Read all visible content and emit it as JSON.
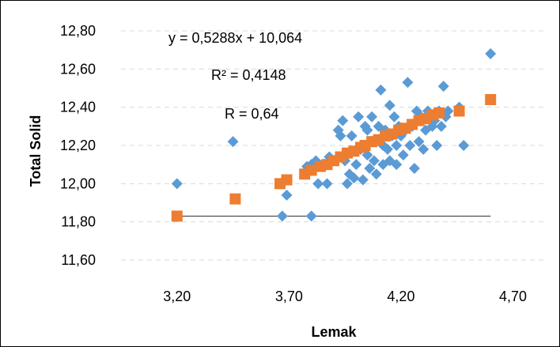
{
  "chart_data": {
    "type": "scatter",
    "xlabel": "Lemak",
    "ylabel": "Total Solid",
    "xlim": [
      2.95,
      4.85
    ],
    "ylim": [
      11.6,
      12.8
    ],
    "x_ticks": [
      "3,20",
      "3,70",
      "4,20",
      "4,70"
    ],
    "x_tick_values": [
      3.2,
      3.7,
      4.2,
      4.7
    ],
    "y_ticks": [
      "12,80",
      "12,60",
      "12,40",
      "12,20",
      "12,00",
      "11,80",
      "11,60"
    ],
    "y_tick_values": [
      12.8,
      12.6,
      12.4,
      12.2,
      12.0,
      11.8,
      11.6
    ],
    "annotations": [
      "y = 0,5288x + 10,064",
      "R² = 0,4148",
      "R = 0,64"
    ],
    "colors": {
      "observed": "#5b9bd5",
      "predicted": "#ed7d31",
      "baseline": "#404040"
    },
    "baseline": {
      "x": [
        3.2,
        4.6
      ],
      "y": 11.83
    },
    "series": [
      {
        "marker": "diamond",
        "points": [
          [
            3.2,
            12.0
          ],
          [
            3.45,
            12.22
          ],
          [
            3.67,
            11.83
          ],
          [
            3.69,
            11.94
          ],
          [
            3.8,
            11.83
          ],
          [
            3.78,
            12.09
          ],
          [
            3.8,
            12.1
          ],
          [
            3.82,
            12.12
          ],
          [
            3.83,
            12.0
          ],
          [
            3.85,
            12.1
          ],
          [
            3.87,
            12.0
          ],
          [
            3.88,
            12.14
          ],
          [
            3.9,
            12.12
          ],
          [
            3.92,
            12.28
          ],
          [
            3.94,
            12.33
          ],
          [
            3.93,
            12.25
          ],
          [
            3.95,
            12.12
          ],
          [
            3.96,
            12.0
          ],
          [
            3.97,
            12.05
          ],
          [
            3.98,
            12.25
          ],
          [
            3.99,
            12.03
          ],
          [
            4.0,
            12.1
          ],
          [
            4.01,
            12.35
          ],
          [
            4.02,
            12.18
          ],
          [
            4.03,
            12.02
          ],
          [
            4.04,
            12.3
          ],
          [
            4.05,
            12.28
          ],
          [
            4.05,
            12.15
          ],
          [
            4.06,
            12.08
          ],
          [
            4.07,
            12.35
          ],
          [
            4.08,
            12.22
          ],
          [
            4.08,
            12.12
          ],
          [
            4.09,
            12.05
          ],
          [
            4.1,
            12.3
          ],
          [
            4.11,
            12.49
          ],
          [
            4.12,
            12.2
          ],
          [
            4.12,
            12.1
          ],
          [
            4.13,
            12.28
          ],
          [
            4.14,
            12.18
          ],
          [
            4.15,
            12.41
          ],
          [
            4.15,
            12.12
          ],
          [
            4.16,
            12.25
          ],
          [
            4.17,
            12.35
          ],
          [
            4.18,
            12.2
          ],
          [
            4.18,
            12.1
          ],
          [
            4.19,
            12.3
          ],
          [
            4.2,
            12.25
          ],
          [
            4.21,
            12.15
          ],
          [
            4.22,
            12.28
          ],
          [
            4.23,
            12.53
          ],
          [
            4.24,
            12.2
          ],
          [
            4.25,
            12.3
          ],
          [
            4.26,
            12.08
          ],
          [
            4.27,
            12.38
          ],
          [
            4.28,
            12.22
          ],
          [
            4.29,
            12.35
          ],
          [
            4.3,
            12.18
          ],
          [
            4.31,
            12.28
          ],
          [
            4.32,
            12.38
          ],
          [
            4.34,
            12.3
          ],
          [
            4.35,
            12.33
          ],
          [
            4.36,
            12.2
          ],
          [
            4.37,
            12.38
          ],
          [
            4.38,
            12.3
          ],
          [
            4.39,
            12.51
          ],
          [
            4.4,
            12.35
          ],
          [
            4.41,
            12.38
          ],
          [
            4.46,
            12.4
          ],
          [
            4.48,
            12.2
          ],
          [
            4.6,
            12.68
          ]
        ]
      },
      {
        "marker": "square",
        "points": [
          [
            3.2,
            11.83
          ],
          [
            3.46,
            11.92
          ],
          [
            3.66,
            12.0
          ],
          [
            3.69,
            12.02
          ],
          [
            3.77,
            12.05
          ],
          [
            3.8,
            12.07
          ],
          [
            3.84,
            12.09
          ],
          [
            3.87,
            12.1
          ],
          [
            3.9,
            12.12
          ],
          [
            3.93,
            12.14
          ],
          [
            3.96,
            12.16
          ],
          [
            3.99,
            12.17
          ],
          [
            4.02,
            12.19
          ],
          [
            4.04,
            12.2
          ],
          [
            4.07,
            12.22
          ],
          [
            4.1,
            12.23
          ],
          [
            4.13,
            12.25
          ],
          [
            4.16,
            12.26
          ],
          [
            4.19,
            12.28
          ],
          [
            4.22,
            12.29
          ],
          [
            4.25,
            12.31
          ],
          [
            4.28,
            12.33
          ],
          [
            4.31,
            12.34
          ],
          [
            4.34,
            12.36
          ],
          [
            4.37,
            12.37
          ],
          [
            4.46,
            12.38
          ],
          [
            4.6,
            12.44
          ]
        ]
      }
    ]
  }
}
